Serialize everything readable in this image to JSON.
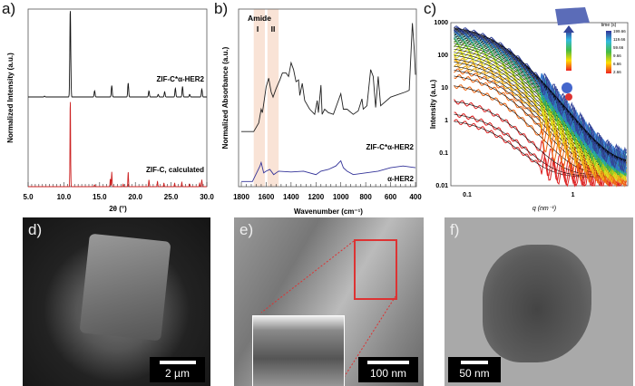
{
  "panels": {
    "a": "a)",
    "b": "b)",
    "c": "c)",
    "d": "d)",
    "e": "e)",
    "f": "f)"
  },
  "chart_data": [
    {
      "type": "line",
      "id": "a",
      "xlabel": "2θ (°)",
      "ylabel": "Normalized Intensity (a.u.)",
      "xlim": [
        5,
        30
      ],
      "xticks": [
        "5.0",
        "10.0",
        "15.0",
        "20.0",
        "25.0",
        "30.0"
      ],
      "series": [
        {
          "name": "ZIF-C*α-HER2",
          "color": "#111111",
          "peaks": [
            [
              7.3,
              0.01
            ],
            [
              10.9,
              1.0
            ],
            [
              14.3,
              0.07
            ],
            [
              16.7,
              0.13
            ],
            [
              19.0,
              0.16
            ],
            [
              21.9,
              0.07
            ],
            [
              23.2,
              0.03
            ],
            [
              24.1,
              0.06
            ],
            [
              25.6,
              0.1
            ],
            [
              26.6,
              0.12
            ],
            [
              27.6,
              0.03
            ],
            [
              29.3,
              0.09
            ]
          ]
        },
        {
          "name": "ZIF-C, calculated",
          "color": "#cc2222",
          "peaks": [
            [
              10.9,
              1.0
            ],
            [
              14.3,
              0.02
            ],
            [
              16.5,
              0.09
            ],
            [
              16.7,
              0.17
            ],
            [
              18.3,
              0.03
            ],
            [
              19.0,
              0.17
            ],
            [
              21.9,
              0.08
            ],
            [
              23.1,
              0.06
            ],
            [
              24.0,
              0.04
            ],
            [
              25.5,
              0.04
            ],
            [
              26.5,
              0.05
            ],
            [
              27.6,
              0.03
            ],
            [
              29.0,
              0.04
            ],
            [
              29.3,
              0.08
            ]
          ]
        }
      ]
    },
    {
      "type": "line",
      "id": "b",
      "xlabel": "Wavenumber (cm⁻¹)",
      "ylabel": "Normalized Absorbance (a.u.)",
      "xlim": [
        1800,
        400
      ],
      "ylim": [
        0,
        1.05
      ],
      "xticks": [
        "1800",
        "1600",
        "1400",
        "1200",
        "1000",
        "800",
        "600",
        "400"
      ],
      "annotations": {
        "title": "Amide",
        "band1": "I",
        "band2": "II"
      },
      "bands": [
        [
          1700,
          1610
        ],
        [
          1590,
          1500
        ]
      ],
      "series": [
        {
          "name": "ZIF-C*α-HER2",
          "color": "#222222",
          "points": [
            [
              1800,
              0.32
            ],
            [
              1700,
              0.32
            ],
            [
              1660,
              0.37
            ],
            [
              1640,
              0.45
            ],
            [
              1630,
              0.43
            ],
            [
              1600,
              0.58
            ],
            [
              1580,
              0.63
            ],
            [
              1560,
              0.55
            ],
            [
              1545,
              0.52
            ],
            [
              1520,
              0.57
            ],
            [
              1490,
              0.62
            ],
            [
              1470,
              0.66
            ],
            [
              1440,
              0.66
            ],
            [
              1420,
              0.64
            ],
            [
              1400,
              0.72
            ],
            [
              1380,
              0.68
            ],
            [
              1360,
              0.61
            ],
            [
              1340,
              0.62
            ],
            [
              1330,
              0.53
            ],
            [
              1310,
              0.6
            ],
            [
              1290,
              0.5
            ],
            [
              1250,
              0.45
            ],
            [
              1210,
              0.42
            ],
            [
              1190,
              0.5
            ],
            [
              1180,
              0.43
            ],
            [
              1160,
              0.59
            ],
            [
              1150,
              0.42
            ],
            [
              1130,
              0.45
            ],
            [
              1100,
              0.43
            ],
            [
              1060,
              0.42
            ],
            [
              1000,
              0.54
            ],
            [
              980,
              0.45
            ],
            [
              950,
              0.45
            ],
            [
              900,
              0.42
            ],
            [
              860,
              0.44
            ],
            [
              830,
              0.51
            ],
            [
              820,
              0.45
            ],
            [
              790,
              0.47
            ],
            [
              760,
              0.68
            ],
            [
              740,
              0.64
            ],
            [
              720,
              0.46
            ],
            [
              700,
              0.64
            ],
            [
              680,
              0.47
            ],
            [
              600,
              0.52
            ],
            [
              480,
              0.55
            ],
            [
              450,
              0.56
            ],
            [
              425,
              0.95
            ],
            [
              410,
              0.8
            ],
            [
              400,
              0.65
            ]
          ]
        },
        {
          "name": "α-HER2",
          "color": "#333399",
          "points": [
            [
              1800,
              0.03
            ],
            [
              1710,
              0.03
            ],
            [
              1650,
              0.12
            ],
            [
              1640,
              0.14
            ],
            [
              1620,
              0.08
            ],
            [
              1600,
              0.09
            ],
            [
              1570,
              0.1
            ],
            [
              1540,
              0.07
            ],
            [
              1500,
              0.09
            ],
            [
              1400,
              0.085
            ],
            [
              1300,
              0.09
            ],
            [
              1200,
              0.07
            ],
            [
              1160,
              0.09
            ],
            [
              1100,
              0.1
            ],
            [
              1040,
              0.12
            ],
            [
              1000,
              0.15
            ],
            [
              980,
              0.11
            ],
            [
              950,
              0.09
            ],
            [
              900,
              0.07
            ],
            [
              800,
              0.08
            ],
            [
              700,
              0.09
            ],
            [
              600,
              0.11
            ],
            [
              500,
              0.12
            ],
            [
              400,
              0.11
            ]
          ]
        }
      ]
    },
    {
      "type": "line",
      "id": "c",
      "xscale": "log",
      "yscale": "log",
      "xlabel": "q (nm⁻¹)",
      "ylabel": "Intensity (a.u.)",
      "xlim": [
        0.07,
        3.3
      ],
      "ylim": [
        0.01,
        1000
      ],
      "yticks": [
        "0.01",
        "0.1",
        "1",
        "10",
        "100",
        "1000"
      ],
      "xticks_major": [
        "0.1",
        "1"
      ],
      "colorbar": {
        "title": "time (s)",
        "labels": [
          "199.66",
          "119.66",
          "59.66",
          "9.66",
          "6.66",
          "2.66"
        ]
      },
      "model": "I(q)=I0/(1+(q/qc)^2)^2+bg",
      "qc": 0.2,
      "bg": 0.03,
      "series_I0": [
        1.2,
        2,
        5,
        15,
        30,
        45,
        60,
        80,
        100,
        130,
        160,
        200,
        250,
        300,
        350,
        400,
        450,
        500,
        550,
        600,
        650,
        700,
        750,
        800,
        850,
        900
      ]
    }
  ],
  "images": {
    "d": {
      "scale": "2 µm"
    },
    "e": {
      "scale": "100 nm"
    },
    "f": {
      "scale": "50 nm"
    }
  }
}
